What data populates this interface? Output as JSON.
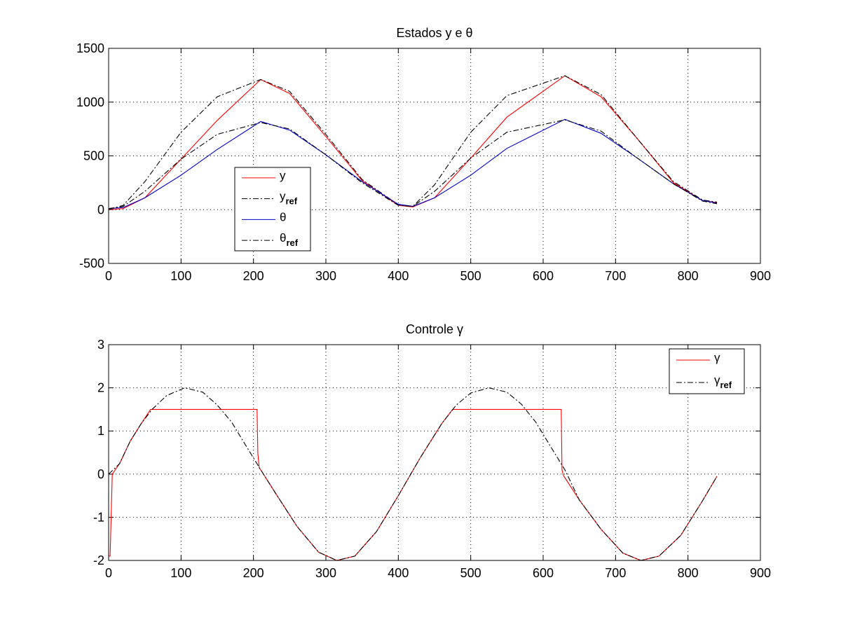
{
  "chart_data": [
    {
      "type": "line",
      "title": "Estados y e θ",
      "xlim": [
        0,
        900
      ],
      "ylim": [
        -500,
        1500
      ],
      "xticks": [
        "0",
        "100",
        "200",
        "300",
        "400",
        "500",
        "600",
        "700",
        "800",
        "900"
      ],
      "yticks": [
        "-500",
        "0",
        "500",
        "1000",
        "1500"
      ],
      "grid": true,
      "legend_position": "lower-left",
      "series": [
        {
          "name": "y",
          "label": "y",
          "sub": "",
          "color": "#ff0000",
          "style": "solid",
          "x": [
            0,
            20,
            50,
            100,
            150,
            210,
            250,
            300,
            350,
            400,
            420,
            450,
            500,
            550,
            630,
            680,
            730,
            780,
            820,
            840
          ],
          "y": [
            0,
            10,
            110,
            470,
            830,
            1210,
            1080,
            680,
            270,
            40,
            25,
            110,
            480,
            860,
            1245,
            1050,
            660,
            250,
            85,
            65
          ]
        },
        {
          "name": "y_ref",
          "label": "y",
          "sub": "ref",
          "color": "#000000",
          "style": "dashdot",
          "x": [
            0,
            20,
            50,
            100,
            150,
            210,
            250,
            300,
            350,
            400,
            420,
            450,
            500,
            550,
            630,
            680,
            730,
            780,
            820,
            840
          ],
          "y": [
            0,
            40,
            260,
            720,
            1050,
            1210,
            1100,
            700,
            280,
            45,
            30,
            230,
            720,
            1060,
            1245,
            1070,
            660,
            260,
            90,
            70
          ]
        },
        {
          "name": "θ",
          "label": "θ",
          "sub": "",
          "color": "#0000cc",
          "style": "solid",
          "x": [
            0,
            20,
            50,
            100,
            150,
            210,
            250,
            300,
            350,
            400,
            420,
            450,
            500,
            550,
            630,
            680,
            730,
            780,
            820,
            840
          ],
          "y": [
            10,
            20,
            110,
            320,
            560,
            820,
            740,
            510,
            260,
            50,
            30,
            110,
            320,
            570,
            840,
            710,
            480,
            240,
            85,
            60
          ]
        },
        {
          "name": "θ_ref",
          "label": "θ",
          "sub": "ref",
          "color": "#000000",
          "style": "dashdot",
          "x": [
            0,
            20,
            50,
            100,
            150,
            210,
            250,
            300,
            350,
            400,
            420,
            450,
            500,
            550,
            630,
            680,
            730,
            780,
            820,
            840
          ],
          "y": [
            10,
            30,
            170,
            470,
            700,
            810,
            750,
            510,
            250,
            40,
            30,
            170,
            480,
            720,
            835,
            730,
            480,
            240,
            80,
            55
          ]
        }
      ]
    },
    {
      "type": "line",
      "title": "Controle γ",
      "xlim": [
        0,
        900
      ],
      "ylim": [
        -2,
        3
      ],
      "xticks": [
        "0",
        "100",
        "200",
        "300",
        "400",
        "500",
        "600",
        "700",
        "800",
        "900"
      ],
      "yticks": [
        "-2",
        "-1",
        "0",
        "1",
        "2",
        "3"
      ],
      "grid": true,
      "legend_position": "top-right",
      "series": [
        {
          "name": "γ",
          "label": "γ",
          "sub": "",
          "color": "#ff0000",
          "style": "solid",
          "x": [
            0,
            2,
            5,
            15,
            30,
            45,
            58,
            205,
            206,
            208,
            210,
            230,
            260,
            290,
            315,
            340,
            370,
            400,
            430,
            460,
            475,
            625,
            626,
            628,
            650,
            680,
            710,
            735,
            760,
            790,
            820,
            840
          ],
          "y": [
            -1.9,
            -1.9,
            0.0,
            0.24,
            0.77,
            1.17,
            1.5,
            1.5,
            0.48,
            0.14,
            0.1,
            -0.43,
            -1.21,
            -1.81,
            -2.0,
            -1.9,
            -1.33,
            -0.5,
            0.37,
            1.17,
            1.5,
            1.5,
            0.1,
            -0.03,
            -0.6,
            -1.28,
            -1.83,
            -2.0,
            -1.9,
            -1.42,
            -0.62,
            -0.05
          ]
        },
        {
          "name": "γ_ref",
          "label": "γ",
          "sub": "ref",
          "color": "#000000",
          "style": "dashdot",
          "x": [
            0,
            15,
            30,
            45,
            60,
            80,
            105,
            130,
            150,
            170,
            190,
            210,
            230,
            260,
            290,
            315,
            340,
            370,
            400,
            430,
            460,
            480,
            500,
            525,
            550,
            570,
            590,
            610,
            630,
            650,
            680,
            710,
            735,
            760,
            790,
            820,
            840
          ],
          "y": [
            0.0,
            0.24,
            0.77,
            1.17,
            1.5,
            1.82,
            2.0,
            1.9,
            1.6,
            1.2,
            0.65,
            0.1,
            -0.43,
            -1.21,
            -1.81,
            -2.0,
            -1.9,
            -1.33,
            -0.5,
            0.37,
            1.17,
            1.6,
            1.88,
            2.0,
            1.9,
            1.62,
            1.2,
            0.65,
            0.1,
            -0.6,
            -1.28,
            -1.83,
            -2.0,
            -1.9,
            -1.42,
            -0.62,
            -0.05
          ]
        }
      ]
    }
  ]
}
